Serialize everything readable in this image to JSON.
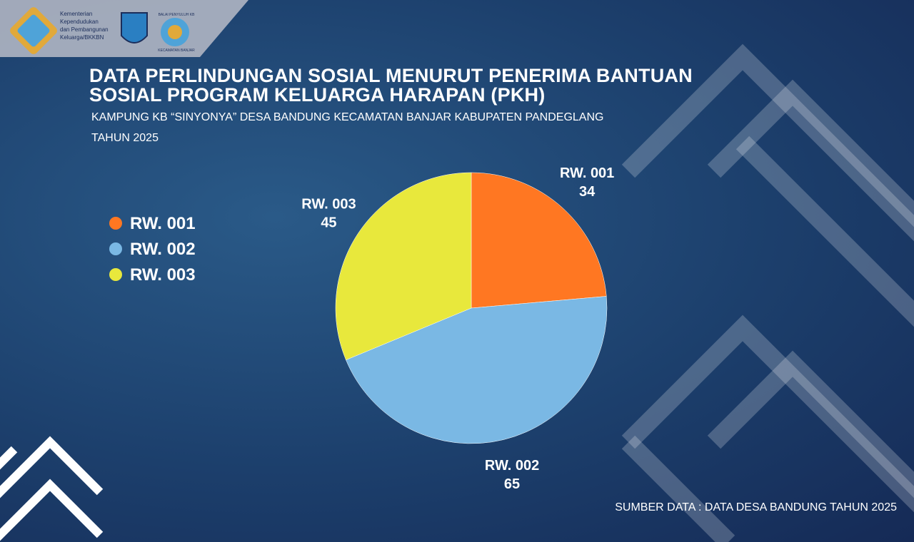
{
  "header": {
    "logo_text": [
      "Kementerian",
      "Kependudukan",
      "dan Pembangunan",
      "Keluarga/BKKBN"
    ],
    "badge_top": "BALAI PENYULUH KB",
    "badge_bottom": "KECAMATAN BANJAR"
  },
  "chart_data": {
    "type": "pie",
    "title": "DATA PERLINDUNGAN SOSIAL MENURUT PENERIMA BANTUAN SOSIAL PROGRAM KELUARGA HARAPAN (PKH)",
    "subtitle": "KAMPUNG KB “SINYONYA” DESA BANDUNG KECAMATAN BANJAR KABUPATEN PANDEGLANG",
    "period": "TAHUN 2025",
    "categories": [
      "RW. 001",
      "RW. 002",
      "RW. 003"
    ],
    "values": [
      34,
      65,
      45
    ],
    "colors": [
      "#ff7722",
      "#7ab8e4",
      "#e8e83c"
    ],
    "legend": "left"
  },
  "source": "SUMBER DATA : DATA DESA BANDUNG TAHUN 2025"
}
